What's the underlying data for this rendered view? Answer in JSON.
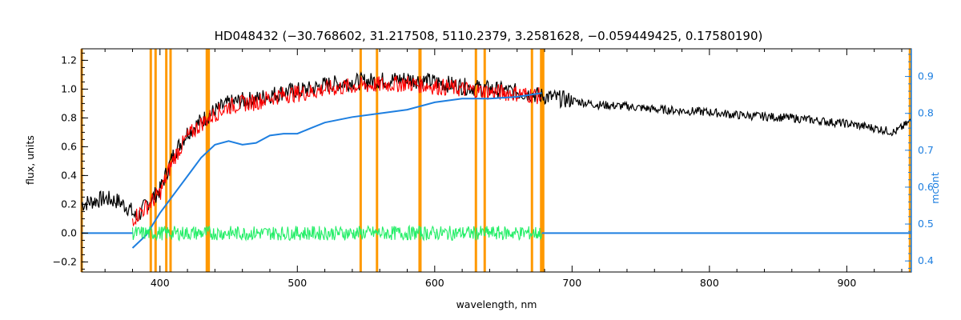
{
  "chart_data": {
    "type": "line",
    "title": "HD048432     (−30.768602, 31.217508, 5110.2379, 3.2581628, −0.059449425, 0.17580190)",
    "xlabel": "wavelength, nm",
    "ylabel": "flux, units",
    "ylabel_right": "mcont",
    "xlim": [
      343,
      947
    ],
    "ylim": [
      -0.27,
      1.28
    ],
    "ylim_right": [
      0.37,
      0.975
    ],
    "x_ticks": [
      400,
      500,
      600,
      700,
      800,
      900
    ],
    "x_tick_labels": [
      "400",
      "500",
      "600",
      "700",
      "800",
      "900"
    ],
    "y_ticks": [
      -0.2,
      0.0,
      0.2,
      0.4,
      0.6,
      0.8,
      1.0,
      1.2
    ],
    "y_tick_labels": [
      "−0.2",
      "0.0",
      "0.2",
      "0.4",
      "0.6",
      "0.8",
      "1.0",
      "1.2"
    ],
    "y_right_ticks": [
      0.4,
      0.5,
      0.6,
      0.7,
      0.8,
      0.9
    ],
    "y_right_tick_labels": [
      "0.4",
      "0.5",
      "0.6",
      "0.7",
      "0.8",
      "0.9"
    ],
    "grid": false,
    "colors": {
      "observed": "#000000",
      "model": "#ff0000",
      "residual": "#22ee66",
      "continuum": "#1e7fe0",
      "mask": "#ff9900"
    },
    "series": [
      {
        "role": "observed",
        "x": [
          343,
          350,
          360,
          370,
          378,
          383,
          390,
          400,
          410,
          420,
          430,
          440,
          450,
          460,
          470,
          480,
          490,
          500,
          510,
          520,
          540,
          560,
          580,
          590,
          600,
          620,
          640,
          660,
          680,
          700,
          720,
          740,
          760,
          780,
          800,
          820,
          840,
          860,
          880,
          900,
          920,
          935,
          947
        ],
        "y": [
          0.2,
          0.22,
          0.24,
          0.22,
          0.17,
          0.1,
          0.2,
          0.3,
          0.55,
          0.7,
          0.78,
          0.85,
          0.9,
          0.92,
          0.93,
          0.96,
          0.98,
          0.99,
          1.0,
          1.03,
          1.05,
          1.06,
          1.07,
          1.06,
          1.05,
          1.02,
          1.0,
          0.98,
          0.95,
          0.92,
          0.89,
          0.88,
          0.86,
          0.85,
          0.84,
          0.82,
          0.81,
          0.8,
          0.78,
          0.76,
          0.73,
          0.7,
          0.78
        ]
      },
      {
        "role": "model",
        "x": [
          380,
          390,
          400,
          410,
          420,
          430,
          440,
          450,
          460,
          470,
          480,
          490,
          500,
          510,
          520,
          540,
          560,
          580,
          600,
          620,
          640,
          660,
          678
        ],
        "y": [
          0.1,
          0.18,
          0.28,
          0.52,
          0.67,
          0.76,
          0.83,
          0.88,
          0.9,
          0.91,
          0.94,
          0.96,
          0.97,
          0.98,
          1.0,
          1.02,
          1.03,
          1.04,
          1.02,
          1.0,
          0.98,
          0.97,
          0.95
        ]
      },
      {
        "role": "continuum",
        "x": [
          380,
          390,
          400,
          410,
          420,
          430,
          440,
          450,
          460,
          470,
          480,
          490,
          500,
          510,
          520,
          540,
          560,
          580,
          600,
          620,
          640,
          660,
          678
        ],
        "y": [
          0.435,
          0.47,
          0.53,
          0.58,
          0.63,
          0.68,
          0.715,
          0.725,
          0.715,
          0.72,
          0.74,
          0.745,
          0.745,
          0.76,
          0.775,
          0.79,
          0.8,
          0.81,
          0.83,
          0.84,
          0.84,
          0.845,
          0.855
        ]
      },
      {
        "role": "residual",
        "x": [
          380,
          678
        ],
        "y": [
          0.0,
          0.0
        ]
      }
    ],
    "mask_lines": [
      343,
      393.3,
      396.8,
      404.6,
      407.7,
      434.1,
      435.5,
      546.1,
      558.0,
      589.0,
      589.6,
      630.0,
      636.4,
      670.8,
      677.5,
      679.0,
      946
    ]
  }
}
